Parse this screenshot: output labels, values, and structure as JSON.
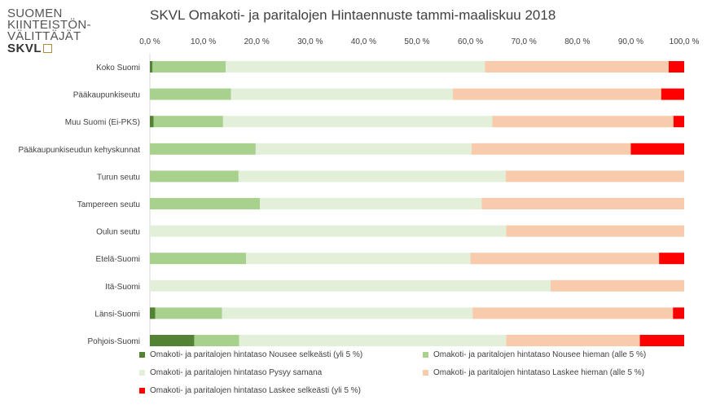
{
  "logo": {
    "lines": [
      "SUOMEN",
      "KIINTEISTÖN-",
      "VÄLITTÄJÄT"
    ],
    "brand": "SKVL"
  },
  "chart_data": {
    "type": "bar",
    "orientation": "horizontal-stacked-100",
    "title": "SKVL Omakoti- ja paritalojen Hintaennuste tammi-maaliskuu 2018",
    "xlabel": "",
    "ylabel": "",
    "xlim": [
      0,
      100
    ],
    "x_ticks": [
      "0,0 %",
      "10,0 %",
      "20,0 %",
      "30,0 %",
      "40,0 %",
      "50,0 %",
      "60,0 %",
      "70,0 %",
      "80,0 %",
      "90,0 %",
      "100,0 %"
    ],
    "grid": false,
    "legend_position": "bottom",
    "categories": [
      "Koko Suomi",
      "Pääkaupunkiseutu",
      "Muu Suomi (Ei-PKS)",
      "Pääkaupunkiseudun kehyskunnat",
      "Turun seutu",
      "Tampereen seutu",
      "Oulun seutu",
      "Etelä-Suomi",
      "Itä-Suomi",
      "Länsi-Suomi",
      "Pohjois-Suomi"
    ],
    "series": [
      {
        "name": "Omakoti- ja paritalojen hintataso Nousee selkeästi (yli 5 %)",
        "color": "#548235",
        "values": [
          0.5,
          0,
          0.7,
          0,
          0,
          0,
          0,
          0,
          0,
          1.0,
          8.3
        ]
      },
      {
        "name": "Omakoti- ja paritalojen hintataso Nousee hieman (alle 5 %)",
        "color": "#a9d18e",
        "values": [
          13.7,
          15.2,
          13.0,
          19.8,
          16.6,
          20.6,
          0,
          18.0,
          0,
          12.5,
          8.4
        ]
      },
      {
        "name": "Omakoti- ja paritalojen hintataso Pysyy samana",
        "color": "#e2f0d9",
        "values": [
          48.5,
          41.5,
          50.4,
          40.4,
          50.0,
          41.5,
          66.7,
          42.0,
          75.0,
          46.9,
          50.0
        ]
      },
      {
        "name": "Omakoti- ja paritalojen hintataso Laskee hieman (alle 5 %)",
        "color": "#f8cbad",
        "values": [
          34.4,
          39.0,
          33.9,
          29.8,
          33.4,
          37.9,
          33.3,
          35.3,
          25.0,
          37.5,
          25.0
        ]
      },
      {
        "name": "Omakoti- ja paritalojen hintataso Laskee selkeästi (yli 5 %)",
        "color": "#ff0000",
        "values": [
          2.9,
          4.3,
          2.0,
          10.0,
          0,
          0,
          0,
          4.7,
          0,
          2.1,
          8.3
        ]
      }
    ]
  }
}
